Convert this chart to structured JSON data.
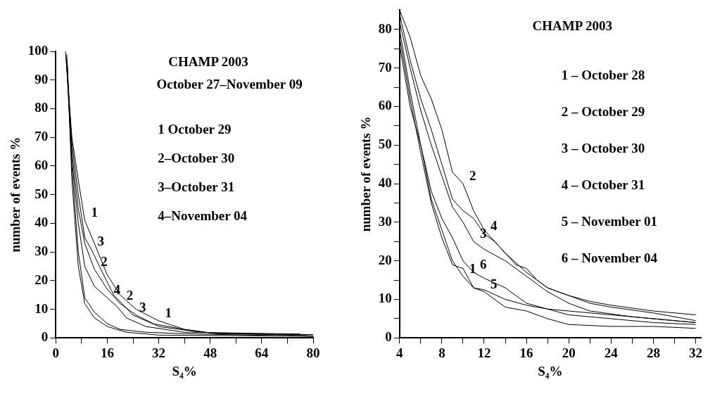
{
  "chart_data": [
    {
      "type": "line",
      "title": "CHAMP 2003",
      "subtitle": "October 27–November 09",
      "xlabel": "S₄%",
      "ylabel": "number of events %",
      "xlim": [
        0,
        80
      ],
      "ylim": [
        0,
        100
      ],
      "xticks": [
        0,
        {
          "value": 8,
          "label": null
        },
        16,
        {
          "value": 24,
          "label": null
        },
        32,
        {
          "value": 40,
          "label": null
        },
        48,
        {
          "value": 56,
          "label": null
        },
        64,
        {
          "value": 72,
          "label": null
        },
        80
      ],
      "yticks": [
        0,
        10,
        20,
        30,
        40,
        50,
        60,
        70,
        80,
        90,
        100
      ],
      "grid": false,
      "legend": false,
      "marker": "none",
      "line_style": "solid",
      "series": [
        {
          "color": "#000000",
          "x": [
            3,
            5,
            7,
            9,
            12,
            16,
            20,
            25,
            32,
            40,
            50,
            80
          ],
          "values": [
            100,
            70,
            55,
            41,
            33,
            22,
            15,
            10,
            6,
            3,
            1.5,
            1.2
          ]
        },
        {
          "color": "#000000",
          "x": [
            3.2,
            5,
            7,
            9,
            11,
            14,
            18,
            24,
            30,
            40,
            50,
            78
          ],
          "values": [
            98,
            68,
            50,
            35,
            31,
            24,
            15,
            8,
            5,
            3,
            1.5,
            1
          ]
        },
        {
          "color": "#000000",
          "x": [
            3.4,
            5,
            7,
            9,
            12,
            16,
            20,
            25,
            32,
            45,
            80
          ],
          "values": [
            99,
            65,
            45,
            33,
            24,
            17,
            12,
            8,
            4,
            2,
            0.8
          ]
        },
        {
          "color": "#000000",
          "x": [
            3.5,
            5,
            7,
            9,
            12,
            16,
            19,
            22,
            28,
            40,
            76
          ],
          "values": [
            96,
            62,
            40,
            25,
            18,
            14,
            11,
            7,
            4,
            2,
            1.4
          ]
        },
        {
          "color": "#000000",
          "x": [
            3.3,
            5,
            7,
            9,
            12,
            16,
            20,
            28,
            40,
            80
          ],
          "values": [
            97,
            60,
            30,
            14,
            9,
            5,
            3,
            2,
            1.5,
            0.5
          ]
        },
        {
          "color": "#000000",
          "x": [
            3.6,
            5,
            7,
            9,
            12,
            16,
            22,
            32,
            74
          ],
          "values": [
            95,
            55,
            25,
            12,
            7,
            4,
            2,
            1,
            0.7
          ]
        }
      ],
      "annotations": [
        "1 October 29",
        "2–October 30",
        "3–October 31",
        "4–November 04",
        {
          "text": "1",
          "x": 9,
          "y": 41
        },
        {
          "text": "3",
          "x": 11,
          "y": 31
        },
        {
          "text": "2",
          "x": 12,
          "y": 24
        },
        {
          "text": "4",
          "x": 16,
          "y": 14
        },
        {
          "text": "2",
          "x": 20,
          "y": 12
        },
        {
          "text": "3",
          "x": 24,
          "y": 8
        },
        {
          "text": "1",
          "x": 32,
          "y": 6
        }
      ]
    },
    {
      "type": "line",
      "title": "CHAMP 2003",
      "xlabel": "S₄%",
      "ylabel": "number of events %",
      "xlim": [
        4,
        32.5
      ],
      "ylim": [
        0,
        85
      ],
      "xticks": [
        4,
        {
          "value": 6,
          "label": null
        },
        8,
        {
          "value": 10,
          "label": null
        },
        12,
        {
          "value": 14,
          "label": null
        },
        16,
        {
          "value": 18,
          "label": null
        },
        20,
        {
          "value": 22,
          "label": null
        },
        24,
        {
          "value": 26,
          "label": null
        },
        28,
        {
          "value": 30,
          "label": null
        },
        32
      ],
      "yticks": [
        0,
        {
          "value": 5,
          "label": null
        },
        10,
        {
          "value": 15,
          "label": null
        },
        20,
        {
          "value": 25,
          "label": null
        },
        30,
        {
          "value": 35,
          "label": null
        },
        40,
        {
          "value": 45,
          "label": null
        },
        50,
        {
          "value": 55,
          "label": null
        },
        60,
        {
          "value": 65,
          "label": null
        },
        70,
        {
          "value": 75,
          "label": null
        },
        80
      ],
      "grid": false,
      "legend": false,
      "marker": "none",
      "line_style": "solid",
      "series": [
        {
          "color": "#000000",
          "x": [
            4,
            5,
            6,
            7,
            8,
            9,
            10,
            11,
            12,
            13,
            14,
            15,
            16,
            17,
            18,
            20,
            22,
            24,
            28,
            32
          ],
          "values": [
            85,
            78,
            68,
            62,
            54,
            43,
            40,
            33,
            28,
            25,
            22,
            19,
            18,
            15,
            13,
            11,
            9.5,
            8.5,
            7,
            6
          ]
        },
        {
          "color": "#000000",
          "x": [
            4,
            5,
            6,
            7,
            8,
            9,
            10,
            11,
            12,
            13,
            14,
            16,
            18,
            20,
            22,
            24,
            28,
            32
          ],
          "values": [
            84,
            72,
            62,
            54,
            45,
            36,
            33,
            31,
            27,
            25,
            22,
            17,
            13,
            11,
            9,
            8,
            6.5,
            4.5
          ]
        },
        {
          "color": "#000000",
          "x": [
            4,
            5,
            6,
            7,
            8,
            9,
            10,
            11,
            12,
            14,
            16,
            18,
            20,
            22,
            26,
            32
          ],
          "values": [
            82,
            70,
            59,
            50,
            42,
            34,
            30,
            25,
            23,
            20,
            16,
            12,
            9,
            7,
            5.5,
            4
          ]
        },
        {
          "color": "#000000",
          "x": [
            4,
            5,
            6,
            7,
            8,
            9,
            10,
            11,
            12,
            14,
            16,
            18,
            20,
            24,
            28,
            32
          ],
          "values": [
            80,
            64,
            50,
            38,
            31,
            26,
            20,
            17,
            15.5,
            13,
            9,
            7.5,
            6,
            5,
            4,
            3.5
          ]
        },
        {
          "color": "#000000",
          "x": [
            4,
            5,
            6,
            7,
            8,
            9,
            10,
            11,
            12,
            14,
            16,
            18,
            20,
            24,
            28,
            32
          ],
          "values": [
            76,
            60,
            50,
            36,
            28,
            20,
            16,
            13,
            12.5,
            10,
            8.5,
            7.5,
            7,
            6,
            5,
            4
          ]
        },
        {
          "color": "#000000",
          "x": [
            4,
            5,
            6,
            7,
            8,
            9,
            10,
            11,
            12,
            13,
            14,
            16,
            18,
            20,
            24,
            28,
            32
          ],
          "values": [
            78,
            62,
            48,
            35,
            26,
            19,
            18,
            13,
            12,
            10,
            8,
            7,
            5,
            3.5,
            3,
            3,
            2.5
          ]
        }
      ],
      "annotations": [
        "1 – October 28",
        "2 – October 29",
        "3 – October 30",
        "4 – October 31",
        "5 – November 01",
        "6 – November 04",
        {
          "text": "2",
          "x": 10,
          "y": 40
        },
        {
          "text": "4",
          "x": 12,
          "y": 27
        },
        {
          "text": "3",
          "x": 11,
          "y": 25
        },
        {
          "text": "6",
          "x": 11,
          "y": 17
        },
        {
          "text": "1",
          "x": 10,
          "y": 16
        },
        {
          "text": "5",
          "x": 12,
          "y": 12
        }
      ]
    }
  ]
}
